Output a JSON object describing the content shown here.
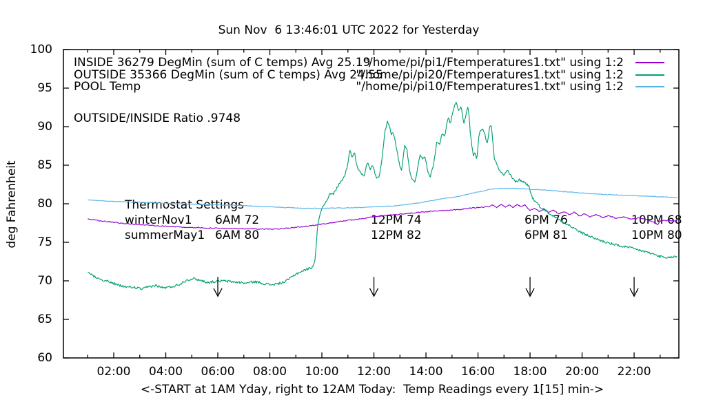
{
  "title": "Sun Nov  6 13:46:01 UTC 2022 for Yesterday",
  "chart_data": {
    "type": "line",
    "xlabel": "<-START at 1AM Yday, right to 12AM Today:  Temp Readings every 1[15] min->",
    "ylabel": "deg Fahrenheit",
    "xlim": [
      0.066,
      23.72
    ],
    "ylim": [
      60,
      100
    ],
    "grid": false,
    "legend_position": "top-inside",
    "background": "#ffffff",
    "x_major_ticks": [
      {
        "t": 2,
        "label": "02:00"
      },
      {
        "t": 4,
        "label": "04:00"
      },
      {
        "t": 6,
        "label": "06:00"
      },
      {
        "t": 8,
        "label": "08:00"
      },
      {
        "t": 10,
        "label": "10:00"
      },
      {
        "t": 12,
        "label": "12:00"
      },
      {
        "t": 14,
        "label": "14:00"
      },
      {
        "t": 16,
        "label": "16:00"
      },
      {
        "t": 18,
        "label": "18:00"
      },
      {
        "t": 20,
        "label": "20:00"
      },
      {
        "t": 22,
        "label": "22:00"
      }
    ],
    "x_minor_ticks": [
      1,
      3,
      5,
      7,
      9,
      11,
      13,
      15,
      17,
      19,
      21,
      23
    ],
    "y_major_ticks": [
      {
        "f": 60,
        "label": "60"
      },
      {
        "f": 65,
        "label": "65"
      },
      {
        "f": 70,
        "label": "70"
      },
      {
        "f": 75,
        "label": "75"
      },
      {
        "f": 80,
        "label": "80"
      },
      {
        "f": 85,
        "label": "85"
      },
      {
        "f": 90,
        "label": "90"
      },
      {
        "f": 95,
        "label": "95"
      },
      {
        "f": 100,
        "label": "100"
      }
    ],
    "ratio_label": "OUTSIDE/INSIDE Ratio .9748",
    "legend": [
      {
        "left_label": "INSIDE 36279 DegMin (sum of C temps) Avg 25.19",
        "right_label": "\"/home/pi/pi1/Ftemperatures1.txt\" using 1:2",
        "color": "#9400d3"
      },
      {
        "left_label": "OUTSIDE 35366 DegMin (sum of C temps) Avg 24.55",
        "right_label": "\"/home/pi/pi20/Ftemperatures1.txt\" using 1:2",
        "color": "#009e73"
      },
      {
        "left_label": "POOL Temp",
        "right_label": "\"/home/pi/pi10/Ftemperatures1.txt\" using 1:2",
        "color": "#56b4e9"
      }
    ],
    "thermostat": {
      "title": "Thermostat Settings",
      "rows": [
        {
          "name": "winterNov1",
          "settings": [
            "6AM 72",
            "12PM 74",
            "6PM 76",
            "10PM 68"
          ]
        },
        {
          "name": "summerMay1",
          "settings": [
            "6AM 80",
            "12PM 82",
            "6PM 81",
            "10PM 80"
          ]
        }
      ]
    },
    "arrows": {
      "at_hours": [
        6,
        12,
        18,
        22
      ],
      "f_top": 70.5,
      "f_tip": 68.0
    },
    "series": [
      {
        "name": "INSIDE",
        "color": "#9400d3",
        "jitter": 0.06,
        "points": [
          [
            1.0,
            78.0
          ],
          [
            1.2,
            77.9
          ],
          [
            1.7,
            77.7
          ],
          [
            2.2,
            77.5
          ],
          [
            2.7,
            77.35
          ],
          [
            3.2,
            77.25
          ],
          [
            3.7,
            77.15
          ],
          [
            4.2,
            77.05
          ],
          [
            4.7,
            76.95
          ],
          [
            5.2,
            76.9
          ],
          [
            5.7,
            76.85
          ],
          [
            6.2,
            76.8
          ],
          [
            6.7,
            76.78
          ],
          [
            7.2,
            76.75
          ],
          [
            7.7,
            76.72
          ],
          [
            8.2,
            76.72
          ],
          [
            8.6,
            76.8
          ],
          [
            9.0,
            76.95
          ],
          [
            9.5,
            77.1
          ],
          [
            10.0,
            77.35
          ],
          [
            10.5,
            77.6
          ],
          [
            11.0,
            77.85
          ],
          [
            11.5,
            78.05
          ],
          [
            12.0,
            78.3
          ],
          [
            12.5,
            78.5
          ],
          [
            13.0,
            78.65
          ],
          [
            13.5,
            78.8
          ],
          [
            14.0,
            78.95
          ],
          [
            14.5,
            79.1
          ],
          [
            15.0,
            79.2
          ],
          [
            15.4,
            79.3
          ],
          [
            15.8,
            79.45
          ],
          [
            16.1,
            79.55
          ],
          [
            16.4,
            79.6
          ],
          [
            16.55,
            79.9
          ],
          [
            16.7,
            79.5
          ],
          [
            16.9,
            79.9
          ],
          [
            17.05,
            79.6
          ],
          [
            17.2,
            79.9
          ],
          [
            17.35,
            79.5
          ],
          [
            17.5,
            79.95
          ],
          [
            17.65,
            79.6
          ],
          [
            17.8,
            79.85
          ],
          [
            18.0,
            79.1
          ],
          [
            18.2,
            79.4
          ],
          [
            18.35,
            79.0
          ],
          [
            18.55,
            79.3
          ],
          [
            18.7,
            78.9
          ],
          [
            18.9,
            79.15
          ],
          [
            19.1,
            78.7
          ],
          [
            19.3,
            79.0
          ],
          [
            19.5,
            78.6
          ],
          [
            19.7,
            78.9
          ],
          [
            19.9,
            78.4
          ],
          [
            20.1,
            78.7
          ],
          [
            20.3,
            78.3
          ],
          [
            20.55,
            78.6
          ],
          [
            20.8,
            78.2
          ],
          [
            21.05,
            78.45
          ],
          [
            21.3,
            78.1
          ],
          [
            21.6,
            78.3
          ],
          [
            21.9,
            78.0
          ],
          [
            22.2,
            78.15
          ],
          [
            22.5,
            77.9
          ],
          [
            22.75,
            77.6
          ],
          [
            22.9,
            77.3
          ],
          [
            23.05,
            77.85
          ],
          [
            23.3,
            77.8
          ],
          [
            23.5,
            77.75
          ],
          [
            23.65,
            77.75
          ]
        ]
      },
      {
        "name": "OUTSIDE",
        "color": "#009e73",
        "jitter": 0.16,
        "points": [
          [
            1.0,
            71.1
          ],
          [
            1.25,
            70.6
          ],
          [
            1.6,
            70.1
          ],
          [
            1.9,
            69.8
          ],
          [
            2.2,
            69.4
          ],
          [
            2.5,
            69.2
          ],
          [
            2.8,
            69.15
          ],
          [
            3.1,
            68.9
          ],
          [
            3.3,
            69.2
          ],
          [
            3.6,
            69.4
          ],
          [
            3.9,
            69.1
          ],
          [
            4.2,
            69.2
          ],
          [
            4.5,
            69.5
          ],
          [
            4.8,
            70.1
          ],
          [
            5.05,
            70.3
          ],
          [
            5.3,
            70.1
          ],
          [
            5.6,
            69.8
          ],
          [
            5.9,
            69.9
          ],
          [
            6.2,
            70.0
          ],
          [
            6.5,
            69.9
          ],
          [
            6.8,
            69.8
          ],
          [
            7.1,
            69.7
          ],
          [
            7.4,
            69.9
          ],
          [
            7.7,
            69.7
          ],
          [
            8.0,
            69.5
          ],
          [
            8.3,
            69.6
          ],
          [
            8.6,
            69.9
          ],
          [
            9.0,
            70.9
          ],
          [
            9.35,
            71.4
          ],
          [
            9.6,
            71.7
          ],
          [
            9.72,
            72.3
          ],
          [
            9.78,
            74.5
          ],
          [
            9.83,
            76.8
          ],
          [
            9.9,
            78.4
          ],
          [
            10.0,
            79.4
          ],
          [
            10.15,
            80.3
          ],
          [
            10.3,
            81.2
          ],
          [
            10.45,
            81.3
          ],
          [
            10.6,
            82.2
          ],
          [
            10.75,
            83.0
          ],
          [
            10.9,
            83.8
          ],
          [
            11.0,
            85.3
          ],
          [
            11.07,
            87.1
          ],
          [
            11.15,
            86.0
          ],
          [
            11.25,
            86.8
          ],
          [
            11.35,
            84.8
          ],
          [
            11.5,
            83.9
          ],
          [
            11.62,
            83.5
          ],
          [
            11.75,
            85.4
          ],
          [
            11.85,
            84.4
          ],
          [
            11.95,
            85.0
          ],
          [
            12.1,
            83.3
          ],
          [
            12.22,
            83.7
          ],
          [
            12.32,
            86.2
          ],
          [
            12.42,
            89.3
          ],
          [
            12.52,
            90.6
          ],
          [
            12.6,
            90.2
          ],
          [
            12.66,
            88.9
          ],
          [
            12.72,
            89.5
          ],
          [
            12.82,
            88.0
          ],
          [
            12.92,
            86.2
          ],
          [
            13.0,
            84.9
          ],
          [
            13.07,
            84.4
          ],
          [
            13.17,
            87.5
          ],
          [
            13.27,
            87.0
          ],
          [
            13.37,
            84.4
          ],
          [
            13.47,
            83.1
          ],
          [
            13.57,
            82.8
          ],
          [
            13.67,
            84.4
          ],
          [
            13.77,
            86.5
          ],
          [
            13.87,
            85.8
          ],
          [
            13.97,
            86.0
          ],
          [
            14.07,
            84.3
          ],
          [
            14.17,
            83.5
          ],
          [
            14.32,
            85.6
          ],
          [
            14.42,
            88.2
          ],
          [
            14.52,
            87.7
          ],
          [
            14.62,
            89.2
          ],
          [
            14.72,
            88.6
          ],
          [
            14.82,
            90.8
          ],
          [
            14.88,
            91.3
          ],
          [
            14.94,
            90.3
          ],
          [
            15.05,
            92.2
          ],
          [
            15.15,
            93.2
          ],
          [
            15.25,
            92.0
          ],
          [
            15.35,
            92.6
          ],
          [
            15.45,
            90.4
          ],
          [
            15.55,
            91.7
          ],
          [
            15.62,
            92.8
          ],
          [
            15.72,
            88.6
          ],
          [
            15.82,
            86.2
          ],
          [
            15.88,
            86.7
          ],
          [
            15.95,
            85.7
          ],
          [
            16.05,
            89.2
          ],
          [
            16.15,
            89.7
          ],
          [
            16.25,
            89.3
          ],
          [
            16.35,
            87.7
          ],
          [
            16.45,
            90.1
          ],
          [
            16.52,
            90.2
          ],
          [
            16.62,
            86.0
          ],
          [
            16.72,
            85.1
          ],
          [
            16.85,
            84.2
          ],
          [
            17.0,
            83.6
          ],
          [
            17.12,
            84.4
          ],
          [
            17.3,
            83.4
          ],
          [
            17.45,
            82.8
          ],
          [
            17.58,
            83.1
          ],
          [
            17.75,
            82.9
          ],
          [
            17.95,
            82.3
          ],
          [
            18.1,
            80.7
          ],
          [
            18.4,
            79.6
          ],
          [
            18.8,
            78.6
          ],
          [
            19.2,
            77.8
          ],
          [
            19.6,
            77.0
          ],
          [
            20.0,
            76.2
          ],
          [
            20.5,
            75.5
          ],
          [
            21.0,
            74.9
          ],
          [
            21.5,
            74.5
          ],
          [
            21.95,
            74.2
          ],
          [
            22.4,
            73.8
          ],
          [
            22.8,
            73.4
          ],
          [
            23.05,
            73.1
          ],
          [
            23.25,
            72.9
          ],
          [
            23.45,
            73.1
          ],
          [
            23.65,
            73.1
          ]
        ]
      },
      {
        "name": "POOL",
        "color": "#56b4e9",
        "jitter": 0.045,
        "points": [
          [
            1.0,
            80.5
          ],
          [
            1.5,
            80.4
          ],
          [
            2.0,
            80.3
          ],
          [
            2.5,
            80.25
          ],
          [
            3.0,
            80.2
          ],
          [
            4.0,
            80.05
          ],
          [
            5.0,
            79.95
          ],
          [
            6.0,
            79.85
          ],
          [
            7.0,
            79.75
          ],
          [
            8.0,
            79.6
          ],
          [
            8.7,
            79.5
          ],
          [
            9.3,
            79.4
          ],
          [
            10.0,
            79.4
          ],
          [
            10.7,
            79.45
          ],
          [
            11.5,
            79.5
          ],
          [
            12.0,
            79.6
          ],
          [
            12.7,
            79.7
          ],
          [
            13.2,
            79.9
          ],
          [
            13.7,
            80.1
          ],
          [
            14.2,
            80.4
          ],
          [
            14.7,
            80.7
          ],
          [
            15.2,
            80.9
          ],
          [
            15.7,
            81.3
          ],
          [
            16.1,
            81.6
          ],
          [
            16.5,
            81.9
          ],
          [
            16.9,
            82.0
          ],
          [
            17.4,
            82.0
          ],
          [
            17.9,
            81.9
          ],
          [
            18.5,
            81.8
          ],
          [
            19.2,
            81.6
          ],
          [
            20.0,
            81.4
          ],
          [
            20.8,
            81.2
          ],
          [
            21.6,
            81.1
          ],
          [
            22.4,
            81.0
          ],
          [
            23.0,
            80.9
          ],
          [
            23.65,
            80.8
          ]
        ]
      }
    ]
  }
}
